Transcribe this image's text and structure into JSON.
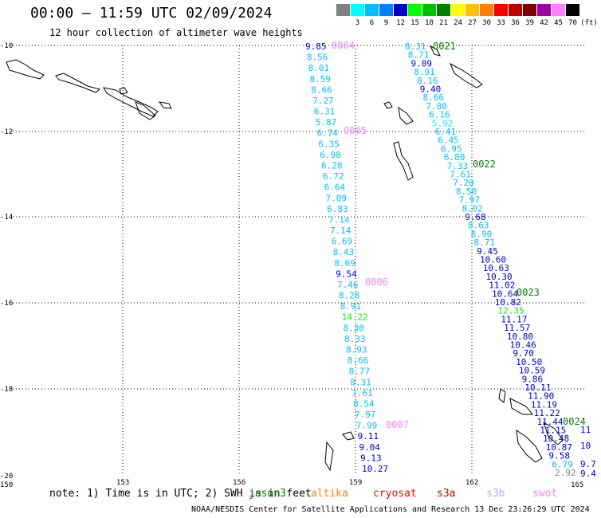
{
  "header": {
    "title": "00:00 – 11:59 UTC 02/09/2024",
    "subtitle": "12 hour collection of altimeter wave heights"
  },
  "color_scale": {
    "unit": "(ft)",
    "bins": [
      {
        "label": "",
        "color": "#808080"
      },
      {
        "label": "3",
        "color": "#00ffff"
      },
      {
        "label": "6",
        "color": "#00bfff"
      },
      {
        "label": "9",
        "color": "#0080ff"
      },
      {
        "label": "12",
        "color": "#0000cc"
      },
      {
        "label": "15",
        "color": "#00ff00"
      },
      {
        "label": "18",
        "color": "#00c000"
      },
      {
        "label": "21",
        "color": "#008000"
      },
      {
        "label": "24",
        "color": "#ffff00"
      },
      {
        "label": "27",
        "color": "#ffc000"
      },
      {
        "label": "30",
        "color": "#ff8000"
      },
      {
        "label": "33",
        "color": "#ff0000"
      },
      {
        "label": "36",
        "color": "#c00000"
      },
      {
        "label": "39",
        "color": "#800000"
      },
      {
        "label": "42",
        "color": "#a000a0"
      },
      {
        "label": "45",
        "color": "#ff80ff"
      },
      {
        "label": "70",
        "color": "#000000"
      }
    ]
  },
  "axes": {
    "lat_labels": [
      "-10",
      "-12",
      "-14",
      "-16",
      "-18",
      "-20"
    ],
    "lon_labels": [
      "150",
      "153",
      "156",
      "159",
      "162",
      "165"
    ]
  },
  "passes": [
    {
      "id": "0004",
      "id_color": "#ff80ff",
      "points": [
        {
          "v": "9.85",
          "c": "#0000cc"
        },
        {
          "v": "8.56",
          "c": "#00bfff"
        },
        {
          "v": "8.01",
          "c": "#00bfff"
        },
        {
          "v": "8.59",
          "c": "#00bfff"
        },
        {
          "v": "8.66",
          "c": "#00bfff"
        },
        {
          "v": "7.27",
          "c": "#00bfff"
        },
        {
          "v": "6.31",
          "c": "#00bfff"
        },
        {
          "v": "5.87",
          "c": "#00bfff"
        },
        {
          "v": "6.74",
          "c": "#00bfff"
        },
        {
          "v": "6.35",
          "c": "#00bfff"
        },
        {
          "v": "6.98",
          "c": "#00bfff"
        },
        {
          "v": "6.28",
          "c": "#00bfff"
        },
        {
          "v": "6.72",
          "c": "#00bfff"
        },
        {
          "v": "6.64",
          "c": "#00bfff"
        },
        {
          "v": "7.09",
          "c": "#00bfff"
        },
        {
          "v": "6.83",
          "c": "#00bfff"
        },
        {
          "v": "7.14",
          "c": "#00bfff"
        },
        {
          "v": "7.14",
          "c": "#00bfff"
        },
        {
          "v": "6.69",
          "c": "#00bfff"
        },
        {
          "v": "8.43",
          "c": "#00bfff"
        },
        {
          "v": "8.69",
          "c": "#00bfff"
        },
        {
          "v": "9.54",
          "c": "#0000cc"
        },
        {
          "v": "7.46",
          "c": "#00bfff"
        },
        {
          "v": "8.28",
          "c": "#00bfff"
        },
        {
          "v": "8.91",
          "c": "#00bfff"
        },
        {
          "v": "14.22",
          "c": "#00ff00"
        },
        {
          "v": "8.30",
          "c": "#00bfff"
        },
        {
          "v": "8.33",
          "c": "#00bfff"
        },
        {
          "v": "8.93",
          "c": "#00bfff"
        },
        {
          "v": "8.66",
          "c": "#00bfff"
        },
        {
          "v": "8.77",
          "c": "#00bfff"
        },
        {
          "v": "8.31",
          "c": "#00bfff"
        },
        {
          "v": "7.61",
          "c": "#00bfff"
        },
        {
          "v": "8.54",
          "c": "#00bfff"
        },
        {
          "v": "7.97",
          "c": "#00bfff"
        },
        {
          "v": "7.99",
          "c": "#00bfff"
        },
        {
          "v": "9.11",
          "c": "#0000cc"
        },
        {
          "v": "9.04",
          "c": "#0000cc"
        },
        {
          "v": "9.13",
          "c": "#0000cc"
        },
        {
          "v": "10.27",
          "c": "#0000cc"
        }
      ]
    },
    {
      "id": "0021",
      "id_color": "#008000",
      "points": [
        {
          "v": "8.31",
          "c": "#00bfff"
        },
        {
          "v": "8.71",
          "c": "#00bfff"
        },
        {
          "v": "9.09",
          "c": "#0000cc"
        },
        {
          "v": "8.91",
          "c": "#00bfff"
        },
        {
          "v": "8.16",
          "c": "#00bfff"
        },
        {
          "v": "9.40",
          "c": "#0000cc"
        },
        {
          "v": "8.66",
          "c": "#00bfff"
        },
        {
          "v": "7.80",
          "c": "#00bfff"
        },
        {
          "v": "6.16",
          "c": "#00bfff"
        },
        {
          "v": "5.92",
          "c": "#00ffff"
        },
        {
          "v": "6.41",
          "c": "#00bfff"
        },
        {
          "v": "6.45",
          "c": "#00bfff"
        },
        {
          "v": "6.95",
          "c": "#00bfff"
        },
        {
          "v": "6.80",
          "c": "#00bfff"
        },
        {
          "v": "7.33",
          "c": "#00bfff"
        },
        {
          "v": "7.61",
          "c": "#00bfff"
        },
        {
          "v": "7.20",
          "c": "#00bfff"
        },
        {
          "v": "8.50",
          "c": "#00bfff"
        },
        {
          "v": "7.97",
          "c": "#00bfff"
        },
        {
          "v": "8.02",
          "c": "#00bfff"
        },
        {
          "v": "9.68",
          "c": "#0000cc"
        },
        {
          "v": "8.63",
          "c": "#00bfff"
        },
        {
          "v": "8.90",
          "c": "#00bfff"
        },
        {
          "v": "8.71",
          "c": "#00bfff"
        },
        {
          "v": "9.45",
          "c": "#0000cc"
        },
        {
          "v": "10.60",
          "c": "#0000cc"
        },
        {
          "v": "10.63",
          "c": "#0000cc"
        },
        {
          "v": "10.30",
          "c": "#0000cc"
        },
        {
          "v": "11.02",
          "c": "#0000cc"
        },
        {
          "v": "10.64",
          "c": "#0000cc"
        },
        {
          "v": "10.82",
          "c": "#0000cc"
        },
        {
          "v": "12.35",
          "c": "#00ff00"
        },
        {
          "v": "11.17",
          "c": "#0000cc"
        },
        {
          "v": "11.57",
          "c": "#0000cc"
        },
        {
          "v": "10.80",
          "c": "#0000cc"
        },
        {
          "v": "10.46",
          "c": "#0000cc"
        },
        {
          "v": "9.70",
          "c": "#0000cc"
        },
        {
          "v": "10.50",
          "c": "#0000cc"
        },
        {
          "v": "10.59",
          "c": "#0000cc"
        },
        {
          "v": "9.86",
          "c": "#0000cc"
        },
        {
          "v": "10.11",
          "c": "#0000cc"
        },
        {
          "v": "11.90",
          "c": "#0000cc"
        },
        {
          "v": "11.19",
          "c": "#0000cc"
        },
        {
          "v": "11.22",
          "c": "#0000cc"
        },
        {
          "v": "11.44",
          "c": "#0000cc"
        },
        {
          "v": "11.15",
          "c": "#0000cc"
        },
        {
          "v": "10.48",
          "c": "#0000cc"
        },
        {
          "v": "10.87",
          "c": "#0000cc"
        },
        {
          "v": "9.58",
          "c": "#0000cc"
        },
        {
          "v": "6.79",
          "c": "#00bfff"
        },
        {
          "v": "2.92",
          "c": "#808080"
        }
      ]
    }
  ],
  "pass_ids": [
    {
      "id": "0005",
      "color": "#ff80ff"
    },
    {
      "id": "0006",
      "color": "#ff80ff"
    },
    {
      "id": "0007",
      "color": "#ff80ff"
    },
    {
      "id": "0022",
      "color": "#008000"
    },
    {
      "id": "0023",
      "color": "#008000"
    },
    {
      "id": "0024",
      "color": "#008000"
    }
  ],
  "edge_values": [
    {
      "v": "11",
      "c": "#0000cc"
    },
    {
      "v": "10",
      "c": "#0000cc"
    },
    {
      "v": "9.7",
      "c": "#0000cc"
    },
    {
      "v": "9.4",
      "c": "#0000cc"
    }
  ],
  "footer": {
    "note": "note: 1) Time is in UTC; 2) SWH is in feet",
    "legend": [
      {
        "label": "jason3",
        "color": "#008000"
      },
      {
        "label": "altika",
        "color": "#ff8000"
      },
      {
        "label": "cryosat",
        "color": "#ff0000"
      },
      {
        "label": "s3a",
        "color": "#c00000"
      },
      {
        "label": "s3b",
        "color": "#c0a0ff"
      },
      {
        "label": "swot",
        "color": "#ff80ff"
      }
    ],
    "credit": "NOAA/NESDIS Center for Satellite Applications and Research   13 Dec 23:26:29 UTC 2024"
  }
}
